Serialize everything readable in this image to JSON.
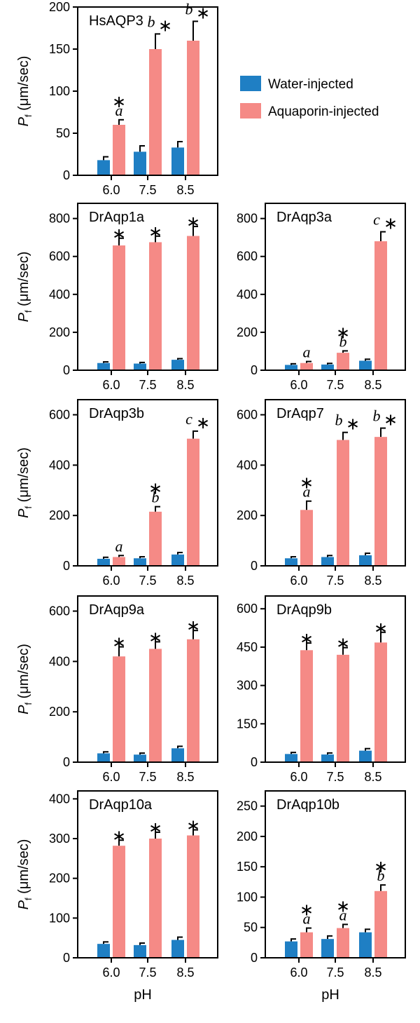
{
  "colors": {
    "water": "#1f7fc4",
    "aquaporin": "#f58a86"
  },
  "legend": [
    {
      "label": "Water-injected",
      "color": "#1f7fc4"
    },
    {
      "label": "Aquaporin-injected",
      "color": "#f58a86"
    }
  ],
  "ylabel": {
    "italic": "P",
    "sub": "f",
    "units": " (μm/sec)"
  },
  "xlabel": "pH",
  "chart_data": [
    {
      "type": "bar",
      "title": "HsAQP3",
      "categories": [
        "6.0",
        "7.5",
        "8.5"
      ],
      "ylim": [
        0,
        200
      ],
      "yticks": [
        0,
        50,
        100,
        150,
        200
      ],
      "series": [
        {
          "values": [
            18,
            28,
            33
          ],
          "errors": [
            4,
            7,
            7
          ]
        },
        {
          "values": [
            60,
            150,
            160
          ],
          "errors": [
            6,
            18,
            23
          ]
        }
      ],
      "annotations": [
        {
          "letter": "a",
          "star": "∗"
        },
        {
          "letter": "b",
          "star": "∗"
        },
        {
          "letter": "b",
          "star": "∗"
        }
      ]
    },
    {
      "type": "bar",
      "title": "DrAqp1a",
      "categories": [
        "6.0",
        "7.5",
        "8.5"
      ],
      "ylim": [
        0,
        880
      ],
      "yticks": [
        0,
        200,
        400,
        600,
        800
      ],
      "series": [
        {
          "values": [
            38,
            35,
            55
          ],
          "errors": [
            6,
            6,
            6
          ]
        },
        {
          "values": [
            658,
            675,
            708
          ],
          "errors": [
            38,
            32,
            50
          ]
        }
      ],
      "annotations": [
        {
          "letter": "",
          "star": "∗"
        },
        {
          "letter": "",
          "star": "∗"
        },
        {
          "letter": "",
          "star": "∗"
        }
      ]
    },
    {
      "type": "bar",
      "title": "DrAqp3a",
      "categories": [
        "6.0",
        "7.5",
        "8.5"
      ],
      "ylim": [
        0,
        880
      ],
      "yticks": [
        0,
        200,
        400,
        600,
        800
      ],
      "series": [
        {
          "values": [
            28,
            30,
            50
          ],
          "errors": [
            6,
            6,
            8
          ]
        },
        {
          "values": [
            38,
            92,
            680
          ],
          "errors": [
            8,
            10,
            50
          ]
        }
      ],
      "annotations": [
        {
          "letter": "a",
          "star": ""
        },
        {
          "letter": "b",
          "star": "∗"
        },
        {
          "letter": "c",
          "star": "∗"
        }
      ]
    },
    {
      "type": "bar",
      "title": "DrAqp3b",
      "categories": [
        "6.0",
        "7.5",
        "8.5"
      ],
      "ylim": [
        0,
        660
      ],
      "yticks": [
        0,
        200,
        400,
        600
      ],
      "series": [
        {
          "values": [
            28,
            30,
            45
          ],
          "errors": [
            6,
            6,
            8
          ]
        },
        {
          "values": [
            35,
            215,
            505
          ],
          "errors": [
            6,
            20,
            30
          ]
        }
      ],
      "annotations": [
        {
          "letter": "a",
          "star": ""
        },
        {
          "letter": "b",
          "star": "∗"
        },
        {
          "letter": "c",
          "star": "∗"
        }
      ]
    },
    {
      "type": "bar",
      "title": "DrAqp7",
      "categories": [
        "6.0",
        "7.5",
        "8.5"
      ],
      "ylim": [
        0,
        660
      ],
      "yticks": [
        0,
        200,
        400,
        600
      ],
      "series": [
        {
          "values": [
            30,
            35,
            42
          ],
          "errors": [
            6,
            6,
            8
          ]
        },
        {
          "values": [
            222,
            500,
            512
          ],
          "errors": [
            35,
            30,
            35
          ]
        }
      ],
      "annotations": [
        {
          "letter": "a",
          "star": "∗"
        },
        {
          "letter": "b",
          "star": "∗"
        },
        {
          "letter": "b",
          "star": "∗"
        }
      ]
    },
    {
      "type": "bar",
      "title": "DrAqp9a",
      "categories": [
        "6.0",
        "7.5",
        "8.5"
      ],
      "ylim": [
        0,
        660
      ],
      "yticks": [
        0,
        200,
        400,
        600
      ],
      "series": [
        {
          "values": [
            35,
            30,
            55
          ],
          "errors": [
            6,
            6,
            8
          ]
        },
        {
          "values": [
            420,
            450,
            488
          ],
          "errors": [
            38,
            28,
            35
          ]
        }
      ],
      "annotations": [
        {
          "letter": "",
          "star": "∗"
        },
        {
          "letter": "",
          "star": "∗"
        },
        {
          "letter": "",
          "star": "∗"
        }
      ]
    },
    {
      "type": "bar",
      "title": "DrAqp9b",
      "categories": [
        "6.0",
        "7.5",
        "8.5"
      ],
      "ylim": [
        0,
        650
      ],
      "yticks": [
        0,
        150,
        300,
        450,
        600
      ],
      "series": [
        {
          "values": [
            32,
            30,
            45
          ],
          "errors": [
            6,
            6,
            8
          ]
        },
        {
          "values": [
            438,
            420,
            468
          ],
          "errors": [
            28,
            28,
            40
          ]
        }
      ],
      "annotations": [
        {
          "letter": "",
          "star": "∗"
        },
        {
          "letter": "",
          "star": "∗"
        },
        {
          "letter": "",
          "star": "∗"
        }
      ]
    },
    {
      "type": "bar",
      "title": "DrAqp10a",
      "categories": [
        "6.0",
        "7.5",
        "8.5"
      ],
      "ylim": [
        0,
        420
      ],
      "yticks": [
        0,
        100,
        200,
        300,
        400
      ],
      "series": [
        {
          "values": [
            35,
            32,
            45
          ],
          "errors": [
            5,
            5,
            7
          ]
        },
        {
          "values": [
            282,
            300,
            308
          ],
          "errors": [
            14,
            16,
            14
          ]
        }
      ],
      "annotations": [
        {
          "letter": "",
          "star": "∗"
        },
        {
          "letter": "",
          "star": "∗"
        },
        {
          "letter": "",
          "star": "∗"
        }
      ]
    },
    {
      "type": "bar",
      "title": "DrAqp10b",
      "categories": [
        "6.0",
        "7.5",
        "8.5"
      ],
      "ylim": [
        0,
        275
      ],
      "yticks": [
        0,
        50,
        100,
        150,
        200,
        250
      ],
      "series": [
        {
          "values": [
            27,
            31,
            42
          ],
          "errors": [
            4,
            5,
            5
          ]
        },
        {
          "values": [
            42,
            49,
            110
          ],
          "errors": [
            7,
            6,
            10
          ]
        }
      ],
      "annotations": [
        {
          "letter": "a",
          "star": "∗"
        },
        {
          "letter": "a",
          "star": "∗"
        },
        {
          "letter": "b",
          "star": "∗"
        }
      ]
    }
  ]
}
